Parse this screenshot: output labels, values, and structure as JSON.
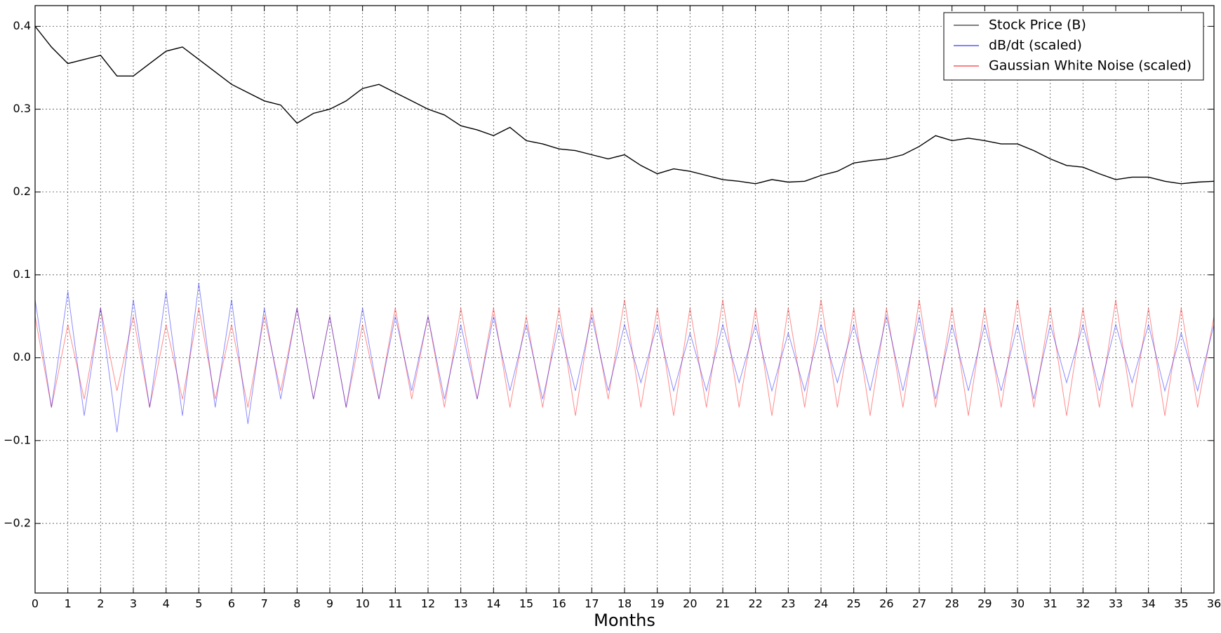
{
  "chart_data": {
    "type": "line",
    "xlabel": "Months",
    "x": [
      0,
      0.5,
      1,
      1.5,
      2,
      2.5,
      3,
      3.5,
      4,
      4.5,
      5,
      5.5,
      6,
      6.5,
      7,
      7.5,
      8,
      8.5,
      9,
      9.5,
      10,
      10.5,
      11,
      11.5,
      12,
      12.5,
      13,
      13.5,
      14,
      14.5,
      15,
      15.5,
      16,
      16.5,
      17,
      17.5,
      18,
      18.5,
      19,
      19.5,
      20,
      20.5,
      21,
      21.5,
      22,
      22.5,
      23,
      23.5,
      24,
      24.5,
      25,
      25.5,
      26,
      26.5,
      27,
      27.5,
      28,
      28.5,
      29,
      29.5,
      30,
      30.5,
      31,
      31.5,
      32,
      32.5,
      33,
      33.5,
      34,
      34.5,
      35,
      35.5,
      36
    ],
    "series": [
      {
        "name": "Gaussian White Noise (scaled)",
        "color": "#ff0000",
        "values": [
          0.05,
          -0.06,
          0.04,
          -0.05,
          0.06,
          -0.04,
          0.05,
          -0.06,
          0.04,
          -0.05,
          0.06,
          -0.05,
          0.04,
          -0.06,
          0.05,
          -0.04,
          0.06,
          -0.05,
          0.05,
          -0.06,
          0.04,
          -0.05,
          0.06,
          -0.05,
          0.05,
          -0.06,
          0.06,
          -0.05,
          0.06,
          -0.06,
          0.05,
          -0.06,
          0.06,
          -0.07,
          0.06,
          -0.05,
          0.07,
          -0.06,
          0.06,
          -0.07,
          0.06,
          -0.06,
          0.07,
          -0.06,
          0.06,
          -0.07,
          0.06,
          -0.06,
          0.07,
          -0.06,
          0.06,
          -0.07,
          0.06,
          -0.06,
          0.07,
          -0.06,
          0.06,
          -0.07,
          0.06,
          -0.06,
          0.07,
          -0.06,
          0.06,
          -0.07,
          0.06,
          -0.06,
          0.07,
          -0.06,
          0.06,
          -0.07,
          0.06,
          -0.06,
          0.05
        ]
      },
      {
        "name": "dB/dt (scaled)",
        "color": "#0000ff",
        "values": [
          0.07,
          -0.06,
          0.08,
          -0.07,
          0.06,
          -0.09,
          0.07,
          -0.06,
          0.08,
          -0.07,
          0.09,
          -0.06,
          0.07,
          -0.08,
          0.06,
          -0.05,
          0.06,
          -0.05,
          0.05,
          -0.06,
          0.06,
          -0.05,
          0.05,
          -0.04,
          0.05,
          -0.05,
          0.04,
          -0.05,
          0.05,
          -0.04,
          0.04,
          -0.05,
          0.04,
          -0.04,
          0.05,
          -0.04,
          0.04,
          -0.03,
          0.04,
          -0.04,
          0.03,
          -0.04,
          0.04,
          -0.03,
          0.04,
          -0.04,
          0.03,
          -0.04,
          0.04,
          -0.03,
          0.04,
          -0.04,
          0.05,
          -0.04,
          0.05,
          -0.05,
          0.04,
          -0.04,
          0.04,
          -0.04,
          0.04,
          -0.05,
          0.04,
          -0.03,
          0.04,
          -0.04,
          0.04,
          -0.03,
          0.04,
          -0.04,
          0.03,
          -0.04,
          0.04
        ]
      },
      {
        "name": "Stock Price (B)",
        "color": "#000000",
        "values": [
          0.4,
          0.375,
          0.355,
          0.36,
          0.365,
          0.34,
          0.34,
          0.355,
          0.37,
          0.375,
          0.36,
          0.345,
          0.33,
          0.32,
          0.31,
          0.305,
          0.283,
          0.295,
          0.3,
          0.31,
          0.325,
          0.33,
          0.32,
          0.31,
          0.3,
          0.293,
          0.28,
          0.275,
          0.268,
          0.278,
          0.262,
          0.258,
          0.252,
          0.25,
          0.245,
          0.24,
          0.245,
          0.232,
          0.222,
          0.228,
          0.225,
          0.22,
          0.215,
          0.213,
          0.21,
          0.215,
          0.212,
          0.213,
          0.22,
          0.225,
          0.235,
          0.238,
          0.24,
          0.245,
          0.255,
          0.268,
          0.262,
          0.265,
          0.262,
          0.258,
          0.258,
          0.25,
          0.24,
          0.232,
          0.23,
          0.222,
          0.215,
          0.218,
          0.218,
          0.213,
          0.21,
          0.212,
          0.213
        ]
      }
    ],
    "legend_order": [
      2,
      1,
      0
    ],
    "legend": "upper right",
    "grid": true,
    "xlim": [
      0,
      36
    ],
    "xticks": [
      0,
      1,
      2,
      3,
      4,
      5,
      6,
      7,
      8,
      9,
      10,
      11,
      12,
      13,
      14,
      15,
      16,
      17,
      18,
      19,
      20,
      21,
      22,
      23,
      24,
      25,
      26,
      27,
      28,
      29,
      30,
      31,
      32,
      33,
      34,
      35,
      36
    ],
    "ylim": [
      -0.284,
      0.425
    ],
    "yticks": [
      {
        "value": -0.2,
        "label": "−0.2"
      },
      {
        "value": -0.1,
        "label": "−0.1"
      },
      {
        "value": 0,
        "label": "0.0"
      },
      0.1,
      0.2,
      0.3,
      0.4
    ]
  }
}
